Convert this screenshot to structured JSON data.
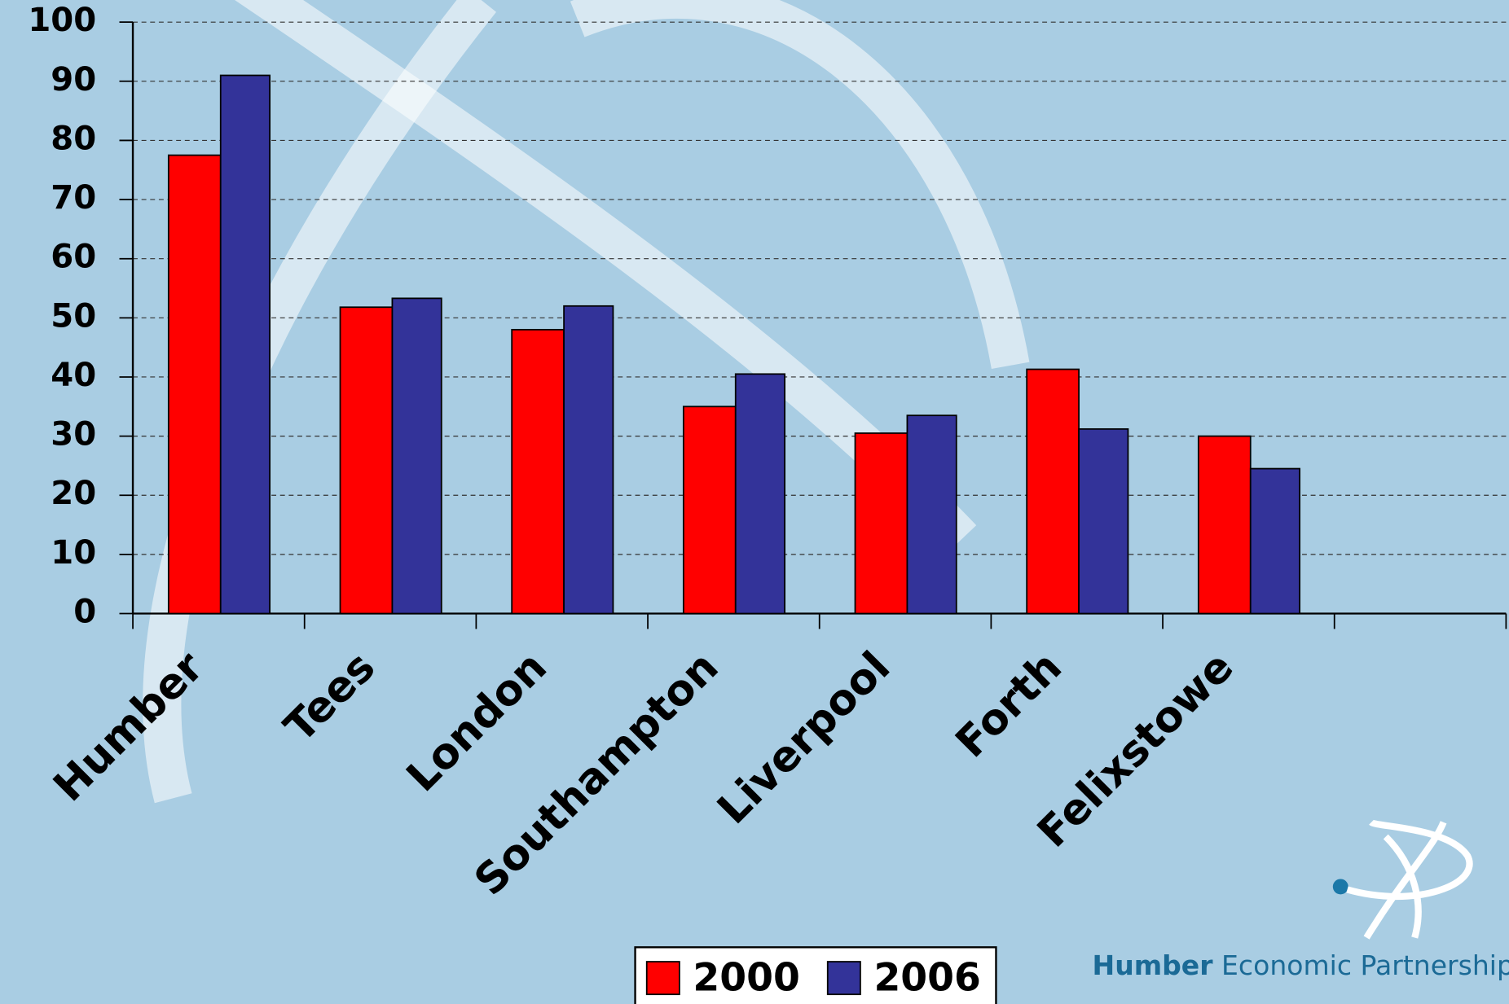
{
  "chart_data": {
    "type": "bar",
    "categories": [
      "Humber",
      "Tees",
      "London",
      "Southampton",
      "Liverpool",
      "Forth",
      "Felixstowe",
      null
    ],
    "series": [
      {
        "name": "2000",
        "color": "#ff0000",
        "values": [
          77.5,
          51.8,
          48,
          35,
          30.5,
          41.3,
          30,
          null
        ]
      },
      {
        "name": "2006",
        "color": "#333399",
        "values": [
          91,
          53.3,
          52,
          40.5,
          33.5,
          31.2,
          24.5,
          null
        ]
      }
    ],
    "ylim": [
      0,
      100
    ],
    "yticks": [
      0,
      10,
      20,
      30,
      40,
      50,
      60,
      70,
      80,
      90,
      100
    ],
    "grid": true,
    "legend": "bottom"
  },
  "logo": {
    "bold": "Humber",
    "text": "Economic Partnership"
  }
}
